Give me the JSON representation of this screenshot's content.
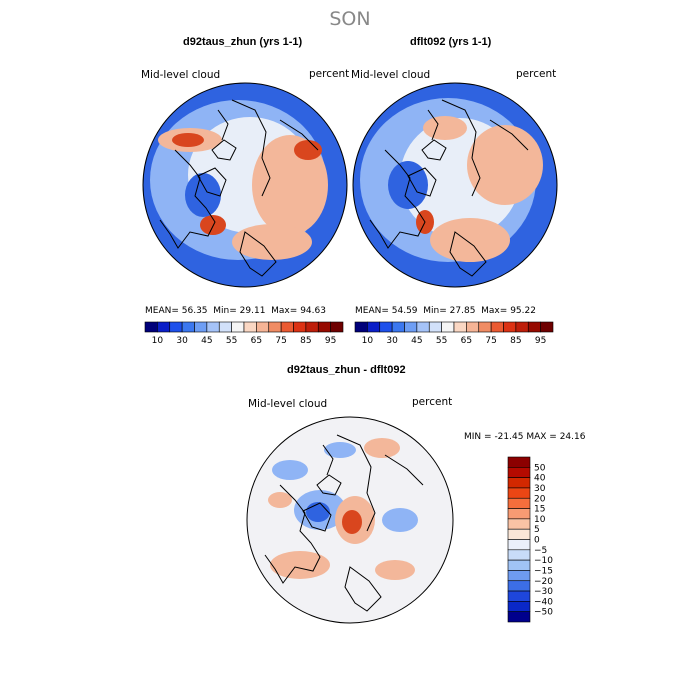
{
  "season_title": "SON",
  "panels": [
    {
      "case_title": "d92taus_zhun (yrs 1-1)",
      "variable": "Mid-level cloud",
      "units": "percent",
      "stats": {
        "mean_label": "MEAN=",
        "mean": "56.35",
        "min_label": "Min=",
        "min": "29.11",
        "max_label": "Max=",
        "max": "94.63"
      }
    },
    {
      "case_title": "dflt092 (yrs 1-1)",
      "variable": "Mid-level cloud",
      "units": "percent",
      "stats": {
        "mean_label": "MEAN=",
        "mean": "54.59",
        "min_label": "Min=",
        "min": "27.85",
        "max_label": "Max=",
        "max": "95.22"
      }
    }
  ],
  "colorbar_top": {
    "tick_labels": [
      "10",
      "30",
      "45",
      "55",
      "65",
      "75",
      "85",
      "95"
    ],
    "colors": [
      "#00007a",
      "#0a1ec8",
      "#1e50eb",
      "#3c78f0",
      "#6e9ef5",
      "#a5c3f8",
      "#d2e1fa",
      "#f5f5f5",
      "#fad7c3",
      "#f5b496",
      "#f08c64",
      "#eb5a32",
      "#dc3214",
      "#be1e0a",
      "#960a00",
      "#6e0000"
    ]
  },
  "diff_panel": {
    "title": "d92taus_zhun - dflt092",
    "variable": "Mid-level cloud",
    "units": "percent",
    "minmax": {
      "min_label": "MIN =",
      "min": "-21.45",
      "max_label": "MAX =",
      "max": "24.16"
    }
  },
  "colorbar_diff": {
    "levels": [
      "50",
      "40",
      "30",
      "20",
      "15",
      "10",
      "5",
      "0",
      "−5",
      "−10",
      "−15",
      "−20",
      "−30",
      "−40",
      "−50"
    ],
    "colors": [
      "#8c0000",
      "#b40a00",
      "#d22800",
      "#eb4614",
      "#f56e3c",
      "#f89b73",
      "#fac3a5",
      "#fae6d7",
      "#ebf0fa",
      "#c8dcf8",
      "#a0c3f5",
      "#6e9bf0",
      "#3c6ee6",
      "#1e46dc",
      "#0a28c8",
      "#00008c"
    ]
  },
  "map_colors": {
    "cloud_low": "#2f63e0",
    "cloud_mid_low": "#8fb4f5",
    "cloud_neutral": "#e8eef8",
    "cloud_mid_high": "#f3b79a",
    "cloud_high": "#d9461e",
    "diff_background": "#f2f2f5",
    "coastline": "#000000"
  }
}
